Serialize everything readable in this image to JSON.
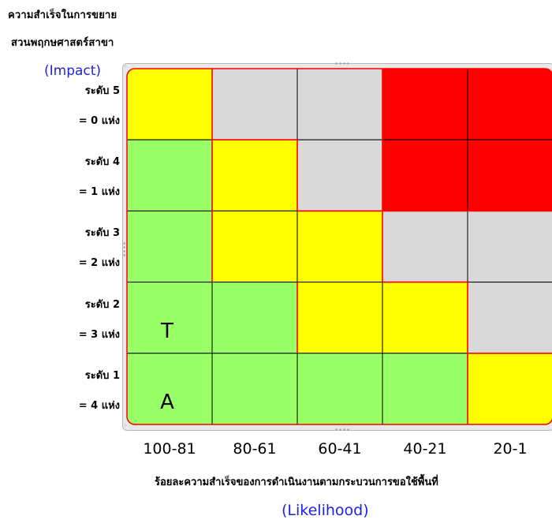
{
  "title": {
    "line1": "ความสำเร็จในการขยาย",
    "line2": "สวนพฤกษศาสตร์สาขา"
  },
  "impact_label": "(Impact)",
  "likelihood_label": "(Likelihood)",
  "x_axis_title": "ร้อยละความสำเร็จของการดำเนินงานตามกระบวนการขอใช้พื้นที่",
  "y_levels": [
    {
      "level": "ระดับ 5",
      "count": "= 0 แห่ง"
    },
    {
      "level": "ระดับ 4",
      "count": "= 1 แห่ง"
    },
    {
      "level": "ระดับ 3",
      "count": "= 2 แห่ง"
    },
    {
      "level": "ระดับ 2",
      "count": "= 3 แห่ง"
    },
    {
      "level": "ระดับ 1",
      "count": "= 4 แห่ง"
    }
  ],
  "colors": {
    "yellow": "#ffff00",
    "gray": "#d9d9d9",
    "red": "#ff0000",
    "green": "#99ff66",
    "border_red": "#ff0000",
    "grid": "#000000",
    "accent_blue": "#1f1fe6"
  },
  "chart_data": {
    "type": "heatmap",
    "x": [
      "100-81",
      "80-61",
      "60-41",
      "40-21",
      "20-1"
    ],
    "y": [
      "ระดับ 5",
      "ระดับ 4",
      "ระดับ 3",
      "ระดับ 2",
      "ระดับ 1"
    ],
    "cells": [
      [
        "yellow",
        "gray",
        "gray",
        "red",
        "red"
      ],
      [
        "green",
        "yellow",
        "gray",
        "red",
        "red"
      ],
      [
        "green",
        "yellow",
        "yellow",
        "gray",
        "gray"
      ],
      [
        "green",
        "green",
        "yellow",
        "yellow",
        "gray"
      ],
      [
        "green",
        "green",
        "green",
        "green",
        "yellow"
      ]
    ],
    "annotations": [
      {
        "row": 3,
        "col": 0,
        "text": "T"
      },
      {
        "row": 4,
        "col": 0,
        "text": "A"
      }
    ],
    "xlabel": "ร้อยละความสำเร็จของการดำเนินงานตามกระบวนการขอใช้พื้นที่",
    "ylabel": "(Impact)"
  }
}
